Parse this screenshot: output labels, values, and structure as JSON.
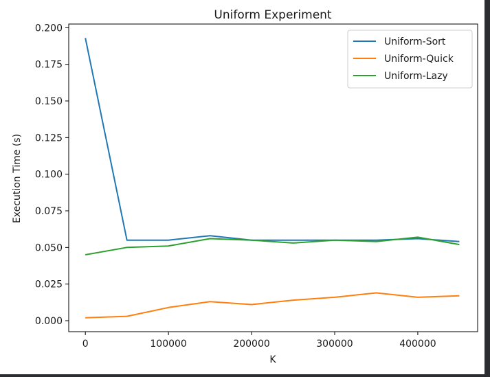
{
  "chart_data": {
    "type": "line",
    "title": "Uniform Experiment",
    "xlabel": "K",
    "ylabel": "Execution Time (s)",
    "x": [
      0,
      50000,
      100000,
      150000,
      200000,
      250000,
      300000,
      350000,
      400000,
      450000
    ],
    "xlim": [
      -20000,
      472000
    ],
    "ylim": [
      -0.0075,
      0.2025
    ],
    "xticks": [
      0,
      100000,
      200000,
      300000,
      400000
    ],
    "xtick_labels": [
      "0",
      "100000",
      "200000",
      "300000",
      "400000"
    ],
    "yticks": [
      0,
      0.025,
      0.05,
      0.075,
      0.1,
      0.125,
      0.15,
      0.175,
      0.2
    ],
    "ytick_labels": [
      "0.000",
      "0.025",
      "0.050",
      "0.075",
      "0.100",
      "0.125",
      "0.150",
      "0.175",
      "0.200"
    ],
    "grid": false,
    "legend_position": "top-right",
    "series": [
      {
        "name": "Uniform-Sort",
        "color": "#1f77b4",
        "values": [
          0.193,
          0.055,
          0.055,
          0.058,
          0.055,
          0.055,
          0.055,
          0.055,
          0.056,
          0.054
        ]
      },
      {
        "name": "Uniform-Quick",
        "color": "#ff7f0e",
        "values": [
          0.002,
          0.003,
          0.009,
          0.013,
          0.011,
          0.014,
          0.016,
          0.019,
          0.016,
          0.017
        ]
      },
      {
        "name": "Uniform-Lazy",
        "color": "#2ca02c",
        "values": [
          0.045,
          0.05,
          0.051,
          0.056,
          0.055,
          0.053,
          0.055,
          0.054,
          0.057,
          0.052
        ]
      }
    ]
  }
}
